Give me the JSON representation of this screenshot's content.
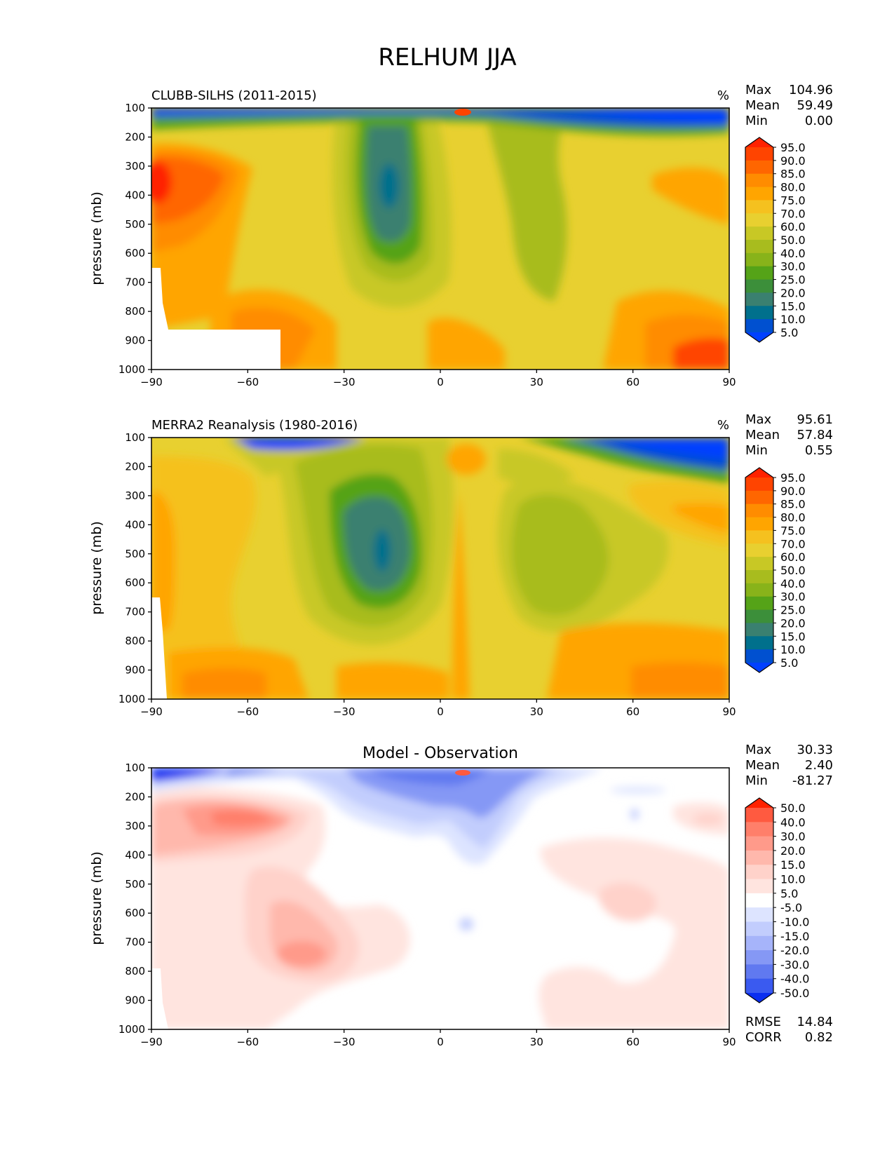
{
  "figure_title": "RELHUM JJA",
  "chart_data": [
    {
      "type": "heatmap",
      "title": "CLUBB-SILHS (2011-2015)",
      "units": "%",
      "ylabel": "pressure (mb)",
      "xlim": [
        -90,
        90
      ],
      "ylim": [
        1000,
        100
      ],
      "x_ticks": [
        "−90",
        "−60",
        "−30",
        "0",
        "30",
        "60",
        "90"
      ],
      "y_ticks": [
        "100",
        "200",
        "300",
        "400",
        "500",
        "600",
        "700",
        "800",
        "900",
        "1000"
      ],
      "stats": [
        {
          "label": "Max",
          "value": "104.96"
        },
        {
          "label": "Mean",
          "value": "59.49"
        },
        {
          "label": "Min",
          "value": "0.00"
        }
      ],
      "colorbar_levels": [
        "95.0",
        "90.0",
        "85.0",
        "80.0",
        "75.0",
        "70.0",
        "60.0",
        "50.0",
        "40.0",
        "30.0",
        "25.0",
        "20.0",
        "15.0",
        "10.0",
        "5.0"
      ],
      "colorbar_colors": [
        "#ff2200",
        "#ff4400",
        "#ff6600",
        "#ff8c00",
        "#ffa500",
        "#f5c11f",
        "#e8d030",
        "#c8c825",
        "#a8bc1e",
        "#88b31a",
        "#55a318",
        "#3c8f3a",
        "#3a8070",
        "#00708c",
        "#0050d0",
        "#0040ff"
      ]
    },
    {
      "type": "heatmap",
      "title": "MERRA2 Reanalysis (1980-2016)",
      "units": "%",
      "ylabel": "pressure (mb)",
      "xlim": [
        -90,
        90
      ],
      "ylim": [
        1000,
        100
      ],
      "x_ticks": [
        "−90",
        "−60",
        "−30",
        "0",
        "30",
        "60",
        "90"
      ],
      "y_ticks": [
        "100",
        "200",
        "300",
        "400",
        "500",
        "600",
        "700",
        "800",
        "900",
        "1000"
      ],
      "stats": [
        {
          "label": "Max",
          "value": "95.61"
        },
        {
          "label": "Mean",
          "value": "57.84"
        },
        {
          "label": "Min",
          "value": "0.55"
        }
      ],
      "colorbar_levels": [
        "95.0",
        "90.0",
        "85.0",
        "80.0",
        "75.0",
        "70.0",
        "60.0",
        "50.0",
        "40.0",
        "30.0",
        "25.0",
        "20.0",
        "15.0",
        "10.0",
        "5.0"
      ],
      "colorbar_colors": [
        "#ff2200",
        "#ff4400",
        "#ff6600",
        "#ff8c00",
        "#ffa500",
        "#f5c11f",
        "#e8d030",
        "#c8c825",
        "#a8bc1e",
        "#88b31a",
        "#55a318",
        "#3c8f3a",
        "#3a8070",
        "#00708c",
        "#0050d0",
        "#0040ff"
      ]
    },
    {
      "type": "heatmap",
      "title": "Model - Observation",
      "units": "",
      "ylabel": "pressure (mb)",
      "xlim": [
        -90,
        90
      ],
      "ylim": [
        1000,
        100
      ],
      "x_ticks": [
        "−90",
        "−60",
        "−30",
        "0",
        "30",
        "60",
        "90"
      ],
      "y_ticks": [
        "100",
        "200",
        "300",
        "400",
        "500",
        "600",
        "700",
        "800",
        "900",
        "1000"
      ],
      "stats": [
        {
          "label": "Max",
          "value": "30.33"
        },
        {
          "label": "Mean",
          "value": "2.40"
        },
        {
          "label": "Min",
          "value": "-81.27"
        }
      ],
      "extra_stats": [
        {
          "label": "RMSE",
          "value": "14.84"
        },
        {
          "label": "CORR",
          "value": "0.82"
        }
      ],
      "colorbar_levels": [
        "50.0",
        "40.0",
        "30.0",
        "20.0",
        "15.0",
        "10.0",
        "5.0",
        "-5.0",
        "-10.0",
        "-15.0",
        "-20.0",
        "-30.0",
        "-40.0",
        "-50.0"
      ],
      "colorbar_colors": [
        "#ff2200",
        "#ff5a40",
        "#ff7f6a",
        "#ff9a8a",
        "#ffb8ac",
        "#ffd2ca",
        "#ffe4df",
        "#ffffff",
        "#dde4ff",
        "#c2cdfd",
        "#a6b4fa",
        "#8598f5",
        "#6079f0",
        "#3a5af0",
        "#0a2ef0"
      ]
    }
  ]
}
